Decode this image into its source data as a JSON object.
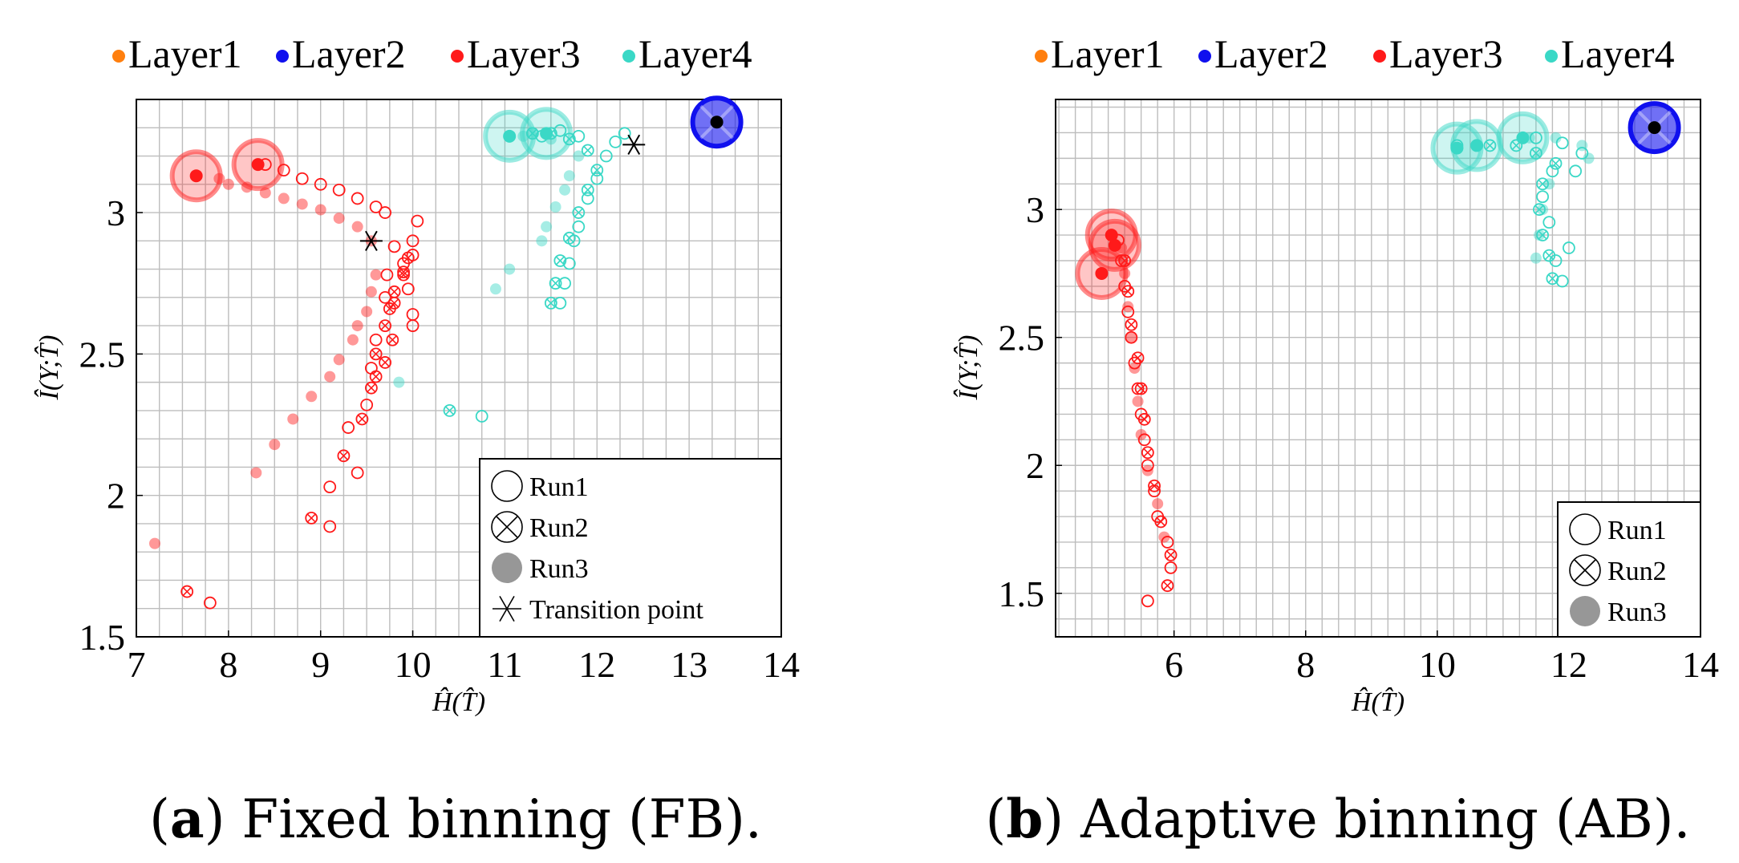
{
  "colors": {
    "layer1": "#ff7f0e",
    "layer2": "#1010ee",
    "layer3": "#ff1a1a",
    "layer4": "#3ad8c6",
    "grid": "#bdbdbd",
    "transition_marker": "#000000"
  },
  "chart_data": [
    {
      "type": "scatter",
      "caption_label": "a",
      "caption_text": " Fixed binning (FB).",
      "xlabel": "Ĥ(T̂)",
      "ylabel": "Î(Y;T̂)",
      "xlim": [
        7,
        14
      ],
      "ylim": [
        1.5,
        3.4
      ],
      "xticks": [
        "7",
        "8",
        "9",
        "10",
        "11",
        "12",
        "13",
        "14"
      ],
      "yticks": [
        "1.5",
        "2",
        "2.5",
        "3"
      ],
      "legend": [
        "Layer1",
        "Layer2",
        "Layer3",
        "Layer4"
      ],
      "marker_legend": [
        "Run1",
        "Run2",
        "Run3",
        "Transition point"
      ],
      "series": [
        {
          "name": "Layer3",
          "run": "Run1",
          "points": [
            [
              7.8,
              1.62
            ],
            [
              9.1,
              1.89
            ],
            [
              9.1,
              2.03
            ],
            [
              9.3,
              2.24
            ],
            [
              9.4,
              2.08
            ],
            [
              9.5,
              2.32
            ],
            [
              9.55,
              2.45
            ],
            [
              9.6,
              2.55
            ],
            [
              9.7,
              2.7
            ],
            [
              9.72,
              2.78
            ],
            [
              9.8,
              2.88
            ],
            [
              9.9,
              2.82
            ],
            [
              9.95,
              2.73
            ],
            [
              10.0,
              2.85
            ],
            [
              10.0,
              2.64
            ],
            [
              10.05,
              2.97
            ],
            [
              10.0,
              2.6
            ],
            [
              10.0,
              2.9
            ],
            [
              9.6,
              3.02
            ],
            [
              9.7,
              3.0
            ],
            [
              9.4,
              3.05
            ],
            [
              9.2,
              3.08
            ],
            [
              9.0,
              3.1
            ],
            [
              8.8,
              3.12
            ],
            [
              8.6,
              3.15
            ],
            [
              8.4,
              3.17
            ]
          ]
        },
        {
          "name": "Layer3",
          "run": "Run2",
          "points": [
            [
              7.55,
              1.66
            ],
            [
              8.9,
              1.92
            ],
            [
              9.25,
              2.14
            ],
            [
              9.45,
              2.27
            ],
            [
              9.55,
              2.38
            ],
            [
              9.6,
              2.5
            ],
            [
              9.7,
              2.6
            ],
            [
              9.75,
              2.66
            ],
            [
              9.8,
              2.72
            ],
            [
              9.9,
              2.78
            ],
            [
              9.95,
              2.84
            ],
            [
              9.9,
              2.79
            ],
            [
              9.8,
              2.68
            ],
            [
              9.78,
              2.55
            ],
            [
              9.7,
              2.47
            ],
            [
              9.6,
              2.42
            ]
          ]
        },
        {
          "name": "Layer3",
          "run": "Run3",
          "points": [
            [
              7.2,
              1.83
            ],
            [
              8.3,
              2.08
            ],
            [
              8.5,
              2.18
            ],
            [
              8.7,
              2.27
            ],
            [
              8.9,
              2.35
            ],
            [
              9.1,
              2.42
            ],
            [
              9.2,
              2.48
            ],
            [
              9.35,
              2.55
            ],
            [
              9.4,
              2.6
            ],
            [
              9.5,
              2.65
            ],
            [
              9.55,
              2.72
            ],
            [
              9.6,
              2.78
            ],
            [
              9.55,
              2.9
            ],
            [
              9.4,
              2.95
            ],
            [
              9.2,
              2.98
            ],
            [
              9.0,
              3.01
            ],
            [
              8.8,
              3.03
            ],
            [
              8.6,
              3.05
            ],
            [
              8.4,
              3.07
            ],
            [
              8.2,
              3.09
            ],
            [
              8.0,
              3.1
            ],
            [
              7.9,
              3.12
            ]
          ]
        },
        {
          "name": "Layer3",
          "run": "Start",
          "points": [
            [
              7.65,
              3.13
            ],
            [
              8.32,
              3.17
            ]
          ]
        },
        {
          "name": "Layer4",
          "run": "Run1",
          "points": [
            [
              10.75,
              2.28
            ],
            [
              11.6,
              2.68
            ],
            [
              11.65,
              2.75
            ],
            [
              11.7,
              2.82
            ],
            [
              11.75,
              2.9
            ],
            [
              11.8,
              2.95
            ],
            [
              11.9,
              3.05
            ],
            [
              12.0,
              3.12
            ],
            [
              12.1,
              3.2
            ],
            [
              12.2,
              3.25
            ],
            [
              12.3,
              3.28
            ],
            [
              11.8,
              3.27
            ],
            [
              11.6,
              3.29
            ],
            [
              11.4,
              3.27
            ]
          ]
        },
        {
          "name": "Layer4",
          "run": "Run2",
          "points": [
            [
              10.4,
              2.3
            ],
            [
              11.5,
              2.68
            ],
            [
              11.55,
              2.75
            ],
            [
              11.6,
              2.83
            ],
            [
              11.7,
              2.91
            ],
            [
              11.8,
              3.0
            ],
            [
              11.9,
              3.08
            ],
            [
              12.0,
              3.15
            ],
            [
              11.9,
              3.22
            ],
            [
              11.7,
              3.26
            ],
            [
              11.5,
              3.28
            ],
            [
              11.3,
              3.28
            ]
          ]
        },
        {
          "name": "Layer4",
          "run": "Run3",
          "points": [
            [
              9.85,
              2.4
            ],
            [
              10.9,
              2.73
            ],
            [
              11.05,
              2.8
            ],
            [
              11.4,
              2.9
            ],
            [
              11.45,
              2.95
            ],
            [
              11.55,
              3.02
            ],
            [
              11.65,
              3.08
            ],
            [
              11.7,
              3.13
            ],
            [
              11.8,
              3.2
            ],
            [
              11.5,
              3.26
            ],
            [
              11.3,
              3.28
            ],
            [
              11.2,
              3.27
            ]
          ]
        },
        {
          "name": "Layer4",
          "run": "Start",
          "points": [
            [
              11.05,
              3.27
            ],
            [
              11.45,
              3.28
            ]
          ]
        },
        {
          "name": "Layer2",
          "run": "Start",
          "points": [
            [
              13.3,
              3.32
            ]
          ]
        },
        {
          "name": "Transition point",
          "run": "Transition",
          "points": [
            [
              9.55,
              2.9
            ],
            [
              12.4,
              3.24
            ]
          ]
        }
      ]
    },
    {
      "type": "scatter",
      "caption_label": "b",
      "caption_text": " Adaptive binning (AB).",
      "xlabel": "Ĥ(T̂)",
      "ylabel": "Î(Y;T̂)",
      "xlim": [
        4.2,
        14
      ],
      "ylim": [
        1.33,
        3.43
      ],
      "xticks": [
        "6",
        "8",
        "10",
        "12",
        "14"
      ],
      "yticks": [
        "1.5",
        "2",
        "2.5",
        "3"
      ],
      "legend": [
        "Layer1",
        "Layer2",
        "Layer3",
        "Layer4"
      ],
      "marker_legend": [
        "Run1",
        "Run2",
        "Run3"
      ],
      "series": [
        {
          "name": "Layer3",
          "run": "Run1",
          "points": [
            [
              5.6,
              1.47
            ],
            [
              5.95,
              1.6
            ],
            [
              5.9,
              1.7
            ],
            [
              5.75,
              1.8
            ],
            [
              5.7,
              1.9
            ],
            [
              5.6,
              2.0
            ],
            [
              5.55,
              2.1
            ],
            [
              5.5,
              2.2
            ],
            [
              5.45,
              2.3
            ],
            [
              5.4,
              2.4
            ],
            [
              5.35,
              2.5
            ],
            [
              5.3,
              2.6
            ],
            [
              5.25,
              2.7
            ],
            [
              5.2,
              2.8
            ],
            [
              5.15,
              2.88
            ]
          ]
        },
        {
          "name": "Layer3",
          "run": "Run2",
          "points": [
            [
              5.9,
              1.53
            ],
            [
              5.95,
              1.65
            ],
            [
              5.8,
              1.78
            ],
            [
              5.7,
              1.92
            ],
            [
              5.6,
              2.05
            ],
            [
              5.55,
              2.18
            ],
            [
              5.5,
              2.3
            ],
            [
              5.45,
              2.42
            ],
            [
              5.35,
              2.55
            ],
            [
              5.3,
              2.68
            ],
            [
              5.25,
              2.8
            ]
          ]
        },
        {
          "name": "Layer3",
          "run": "Run3",
          "points": [
            [
              5.85,
              1.72
            ],
            [
              5.75,
              1.85
            ],
            [
              5.6,
              1.98
            ],
            [
              5.5,
              2.12
            ],
            [
              5.45,
              2.25
            ],
            [
              5.4,
              2.38
            ],
            [
              5.35,
              2.5
            ],
            [
              5.3,
              2.62
            ],
            [
              5.25,
              2.75
            ],
            [
              5.2,
              2.85
            ]
          ]
        },
        {
          "name": "Layer3",
          "run": "Start",
          "points": [
            [
              4.9,
              2.75
            ],
            [
              5.05,
              2.9
            ],
            [
              5.1,
              2.86
            ]
          ]
        },
        {
          "name": "Layer4",
          "run": "Run1",
          "points": [
            [
              10.3,
              3.25
            ],
            [
              11.9,
              2.72
            ],
            [
              11.8,
              2.8
            ],
            [
              12.0,
              2.85
            ],
            [
              11.7,
              2.95
            ],
            [
              11.6,
              3.05
            ],
            [
              11.75,
              3.15
            ],
            [
              12.1,
              3.15
            ],
            [
              12.2,
              3.22
            ],
            [
              11.9,
              3.26
            ],
            [
              11.5,
              3.28
            ]
          ]
        },
        {
          "name": "Layer4",
          "run": "Run2",
          "points": [
            [
              11.75,
              2.73
            ],
            [
              11.7,
              2.82
            ],
            [
              11.6,
              2.9
            ],
            [
              11.55,
              3.0
            ],
            [
              11.6,
              3.1
            ],
            [
              11.8,
              3.18
            ],
            [
              11.5,
              3.22
            ],
            [
              11.2,
              3.25
            ],
            [
              10.8,
              3.25
            ]
          ]
        },
        {
          "name": "Layer4",
          "run": "Run3",
          "points": [
            [
              11.5,
              2.81
            ],
            [
              11.55,
              2.9
            ],
            [
              11.6,
              3.0
            ],
            [
              11.7,
              3.1
            ],
            [
              12.3,
              3.2
            ],
            [
              12.2,
              3.25
            ],
            [
              11.8,
              3.28
            ],
            [
              11.4,
              3.28
            ]
          ]
        },
        {
          "name": "Layer4",
          "run": "Start",
          "points": [
            [
              10.3,
              3.24
            ],
            [
              10.6,
              3.25
            ],
            [
              11.3,
              3.28
            ]
          ]
        },
        {
          "name": "Layer2",
          "run": "Start",
          "points": [
            [
              13.3,
              3.32
            ]
          ]
        }
      ]
    }
  ]
}
